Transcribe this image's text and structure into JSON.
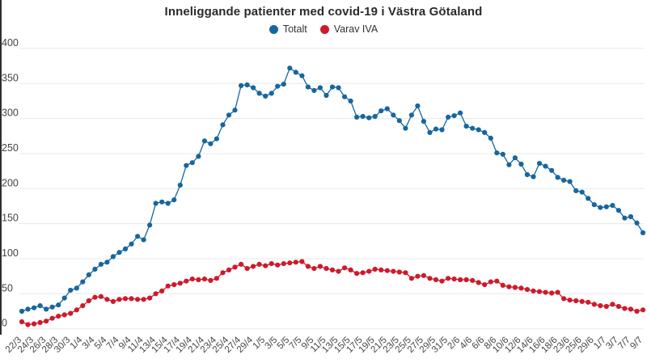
{
  "chart_data": {
    "type": "line",
    "title": "Inneliggande patienter med covid-19 i Västra Götaland",
    "xlabel": "",
    "ylabel": "",
    "ylim": [
      0,
      400
    ],
    "yticks": [
      0,
      50,
      100,
      150,
      200,
      250,
      300,
      350,
      400
    ],
    "grid": true,
    "legend_position": "top",
    "x_tick_every": 2,
    "categories": [
      "22/3",
      "23/3",
      "24/3",
      "25/3",
      "26/3",
      "27/3",
      "28/3",
      "29/3",
      "30/3",
      "31/3",
      "1/4",
      "2/4",
      "3/4",
      "4/4",
      "5/4",
      "6/4",
      "7/4",
      "8/4",
      "9/4",
      "10/4",
      "11/4",
      "12/4",
      "13/4",
      "14/4",
      "15/4",
      "16/4",
      "17/4",
      "18/4",
      "19/4",
      "20/4",
      "21/4",
      "22/4",
      "23/4",
      "24/4",
      "25/4",
      "26/4",
      "27/4",
      "28/4",
      "29/4",
      "30/4",
      "1/5",
      "2/5",
      "3/5",
      "4/5",
      "5/5",
      "6/5",
      "7/5",
      "8/5",
      "9/5",
      "10/5",
      "11/5",
      "12/5",
      "13/5",
      "14/5",
      "15/5",
      "16/5",
      "17/5",
      "18/5",
      "19/5",
      "20/5",
      "21/5",
      "22/5",
      "23/5",
      "24/5",
      "25/5",
      "26/5",
      "27/5",
      "28/5",
      "29/5",
      "30/5",
      "31/5",
      "1/6",
      "2/6",
      "3/6",
      "4/6",
      "5/6",
      "6/6",
      "7/6",
      "8/6",
      "9/6",
      "10/6",
      "11/6",
      "12/6",
      "13/6",
      "14/6",
      "15/6",
      "16/6",
      "17/6",
      "18/6",
      "22/6",
      "23/6",
      "24/6",
      "25/6",
      "26/6",
      "29/6",
      "30/6",
      "1/7",
      "2/7",
      "3/7",
      "6/7",
      "7/7",
      "8/7",
      "9/7"
    ],
    "series": [
      {
        "name": "Totalt",
        "color": "#17669e",
        "values": [
          25,
          28,
          30,
          33,
          28,
          31,
          34,
          44,
          55,
          58,
          67,
          77,
          85,
          92,
          95,
          103,
          109,
          114,
          121,
          132,
          127,
          148,
          179,
          181,
          179,
          184,
          205,
          233,
          237,
          246,
          268,
          264,
          271,
          291,
          305,
          312,
          347,
          348,
          344,
          336,
          332,
          336,
          346,
          349,
          372,
          366,
          361,
          345,
          340,
          344,
          333,
          345,
          344,
          331,
          325,
          302,
          303,
          301,
          303,
          311,
          314,
          305,
          297,
          286,
          305,
          318,
          296,
          280,
          285,
          284,
          302,
          304,
          308,
          289,
          286,
          284,
          280,
          272,
          251,
          249,
          234,
          244,
          235,
          220,
          217,
          236,
          232,
          226,
          216,
          212,
          210,
          197,
          195,
          186,
          177,
          173,
          174,
          176,
          169,
          158,
          160,
          151,
          137
        ]
      },
      {
        "name": "Varav IVA",
        "color": "#ce1a2c",
        "values": [
          10,
          6,
          7,
          9,
          11,
          15,
          18,
          20,
          22,
          27,
          33,
          40,
          45,
          46,
          42,
          39,
          42,
          43,
          43,
          42,
          42,
          44,
          50,
          54,
          61,
          63,
          65,
          68,
          71,
          70,
          71,
          69,
          72,
          80,
          84,
          88,
          92,
          86,
          89,
          92,
          90,
          93,
          91,
          93,
          94,
          95,
          96,
          89,
          86,
          89,
          86,
          84,
          82,
          87,
          84,
          79,
          80,
          82,
          85,
          84,
          83,
          82,
          81,
          80,
          72,
          75,
          76,
          72,
          70,
          68,
          72,
          71,
          70,
          70,
          69,
          66,
          63,
          67,
          68,
          62,
          60,
          59,
          58,
          56,
          54,
          53,
          52,
          51,
          52,
          43,
          41,
          40,
          39,
          38,
          35,
          33,
          32,
          35,
          32,
          29,
          28,
          25,
          27
        ]
      }
    ],
    "colors": {
      "grid": "#e8e8e8",
      "tick_text": "#444444",
      "title_text": "#2b2b2b"
    }
  }
}
